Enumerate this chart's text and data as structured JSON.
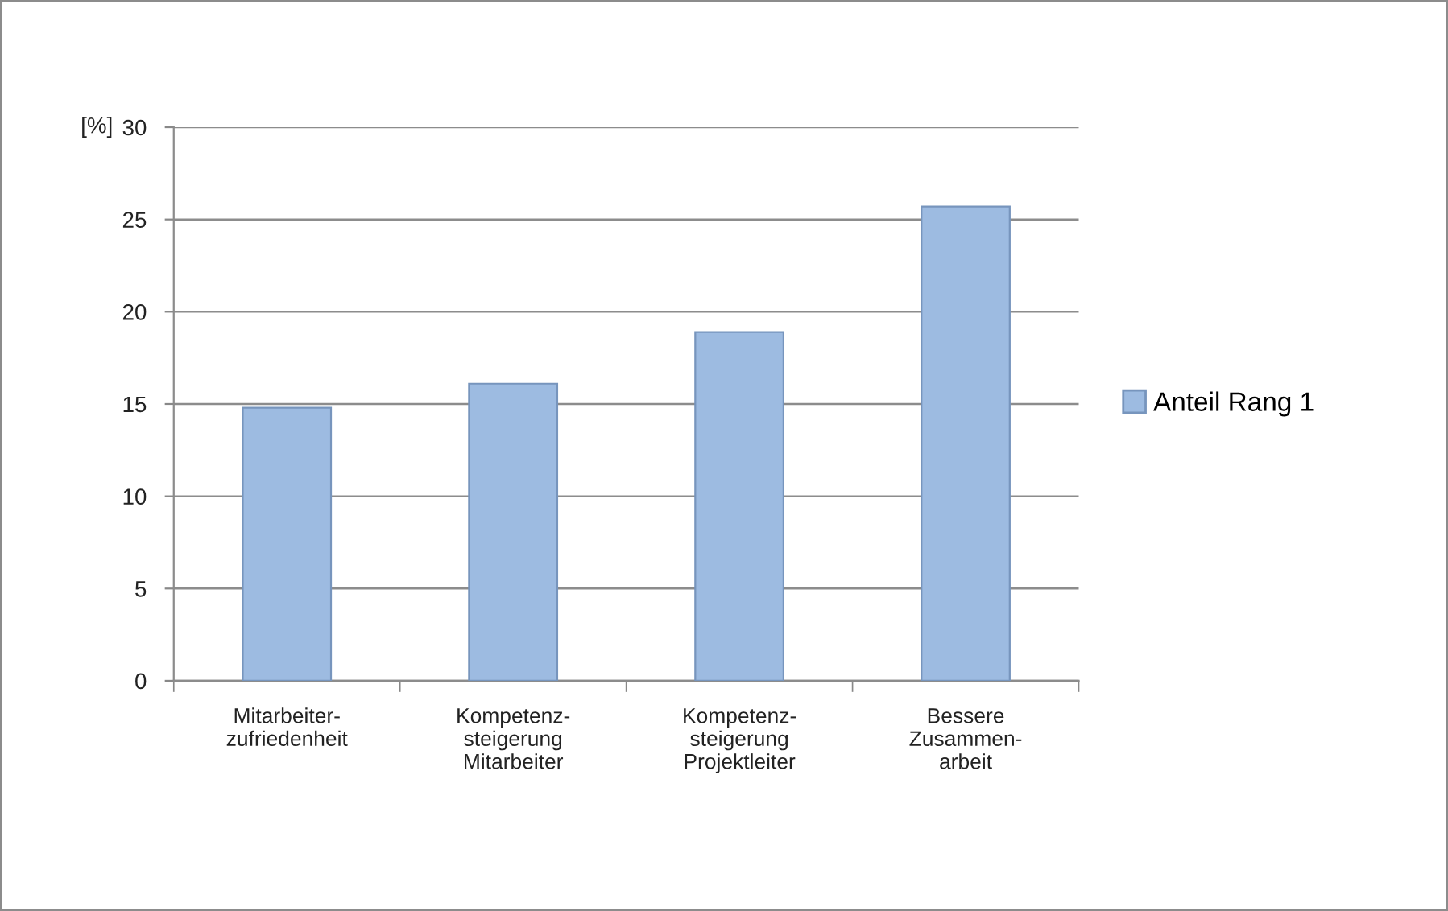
{
  "chart_data": {
    "type": "bar",
    "ylabel": "[%]",
    "categories": [
      "Mitarbeiter-\nzufriedenheit",
      "Kompetenz-\nsteigerung\nMitarbeiter",
      "Kompetenz-\nsteigerung\nProjektleiter",
      "Bessere\nZusammen-\narbeit"
    ],
    "series": [
      {
        "name": "Anteil Rang 1",
        "color": "#9dbbe1",
        "values": [
          14.8,
          16.1,
          18.9,
          25.7
        ]
      }
    ],
    "ylim": [
      0,
      30
    ],
    "yticks": [
      0,
      5,
      10,
      15,
      20,
      25,
      30
    ],
    "grid": "y",
    "legend": "right"
  }
}
